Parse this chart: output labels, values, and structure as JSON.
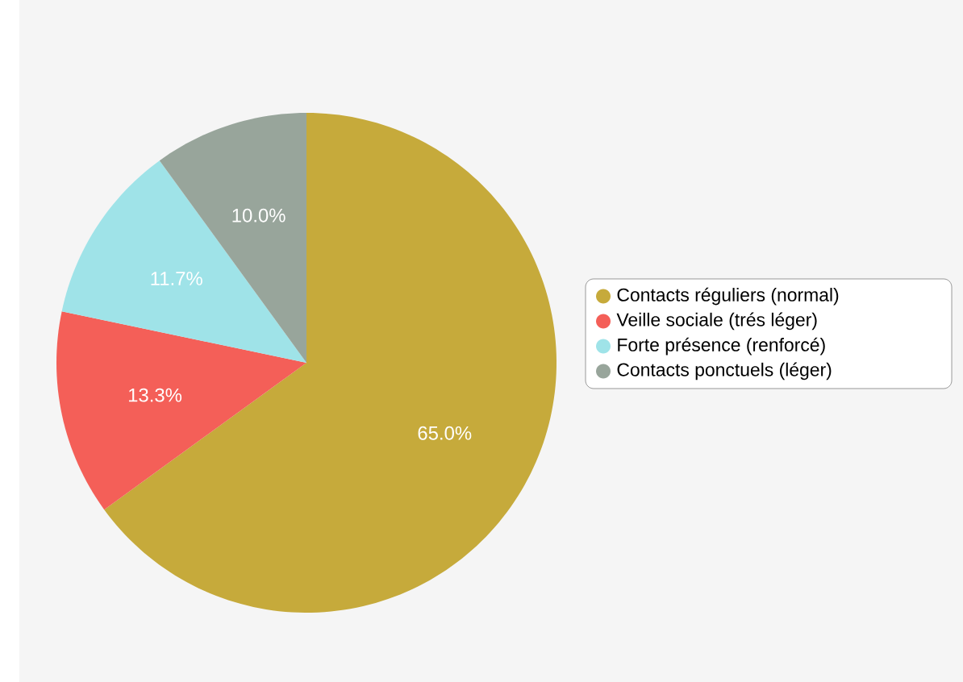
{
  "chart_data": {
    "type": "pie",
    "categories": [
      "Contacts réguliers (normal)",
      "Veille sociale (trés léger)",
      "Forte présence (renforcé)",
      "Contacts ponctuels (léger)"
    ],
    "values": [
      65.0,
      13.3,
      11.7,
      10.0
    ],
    "colors": [
      "#c6aa3b",
      "#f45f58",
      "#9fe3e8",
      "#98a59b"
    ],
    "value_labels": [
      "65.0%",
      "13.3%",
      "11.7%",
      "10.0%"
    ],
    "legend": "right"
  }
}
